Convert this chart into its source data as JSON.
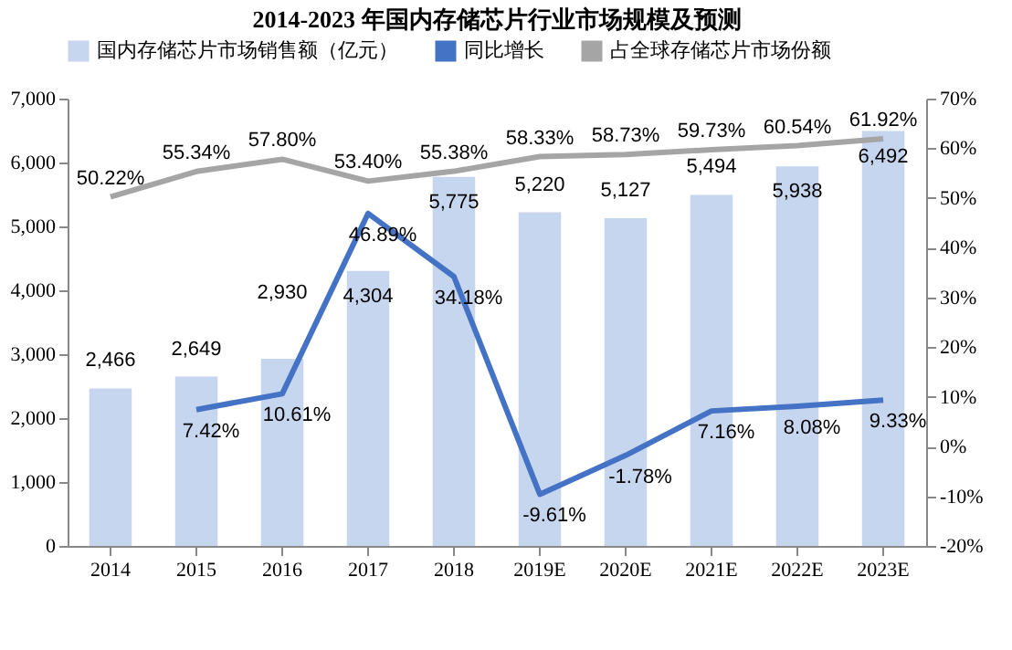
{
  "chart_data": {
    "type": "bar",
    "title": "2014-2023 年国内存储芯片行业市场规模及预测",
    "categories": [
      "2014",
      "2015",
      "2016",
      "2017",
      "2018",
      "2019E",
      "2020E",
      "2021E",
      "2022E",
      "2023E"
    ],
    "series": [
      {
        "name": "国内存储芯片市场销售额（亿元）",
        "color": "#c6d6ef",
        "values": [
          2466,
          2649,
          2930,
          4304,
          5775,
          5220,
          5127,
          5494,
          5938,
          6492
        ],
        "value_labels": [
          "2,466",
          "2,649",
          "2,930",
          "4,304",
          "5,775",
          "5,220",
          "5,127",
          "5,494",
          "5,938",
          "6,492"
        ]
      },
      {
        "name": "同比增长",
        "type": "line",
        "axis": "y2",
        "color": "#4472c4",
        "values": [
          null,
          7.42,
          10.61,
          46.89,
          34.18,
          -9.61,
          -1.78,
          7.16,
          8.08,
          9.33
        ],
        "value_labels": [
          null,
          "7.42%",
          "10.61%",
          "46.89%",
          "34.18%",
          "-9.61%",
          "-1.78%",
          "7.16%",
          "8.08%",
          "9.33%"
        ]
      },
      {
        "name": "占全球存储芯片市场份额",
        "type": "line",
        "axis": "y2",
        "color": "#a5a5a5",
        "values": [
          50.22,
          55.34,
          57.8,
          53.4,
          55.38,
          58.33,
          58.73,
          59.73,
          60.54,
          61.92
        ],
        "value_labels": [
          "50.22%",
          "55.34%",
          "57.80%",
          "53.40%",
          "55.38%",
          "58.33%",
          "58.73%",
          "59.73%",
          "60.54%",
          "61.92%"
        ]
      }
    ],
    "ylim": [
      0,
      7000
    ],
    "yticks": [
      0,
      {
        "value": 1000,
        "label": "1,000"
      },
      {
        "value": 2000,
        "label": "2,000"
      },
      {
        "value": 3000,
        "label": "3,000"
      },
      {
        "value": 4000,
        "label": "4,000"
      },
      {
        "value": 5000,
        "label": "5,000"
      },
      {
        "value": 6000,
        "label": "6,000"
      },
      {
        "value": 7000,
        "label": "7,000"
      }
    ],
    "y2lim": [
      -20,
      70
    ],
    "y2ticks": [
      {
        "value": -20,
        "label": "-20%"
      },
      {
        "value": -10,
        "label": "-10%"
      },
      {
        "value": 0,
        "label": "0%"
      },
      {
        "value": 10,
        "label": "10%"
      },
      {
        "value": 20,
        "label": "20%"
      },
      {
        "value": 30,
        "label": "30%"
      },
      {
        "value": 40,
        "label": "40%"
      },
      {
        "value": 50,
        "label": "50%"
      },
      {
        "value": 60,
        "label": "60%"
      },
      {
        "value": 70,
        "label": "70%"
      }
    ],
    "legend": "top"
  }
}
